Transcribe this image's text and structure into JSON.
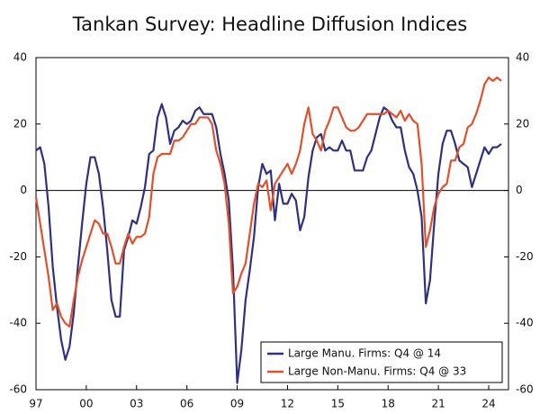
{
  "chart_data": {
    "type": "line",
    "title": "Tankan Survey: Headline Diffusion Indices",
    "categories": [
      "97",
      null,
      null,
      null,
      null,
      null,
      null,
      null,
      null,
      null,
      null,
      null,
      "00",
      null,
      null,
      null,
      null,
      null,
      null,
      null,
      null,
      null,
      null,
      null,
      "03",
      null,
      null,
      null,
      null,
      null,
      null,
      null,
      null,
      null,
      null,
      null,
      "06",
      null,
      null,
      null,
      null,
      null,
      null,
      null,
      null,
      null,
      null,
      null,
      "09",
      null,
      null,
      null,
      null,
      null,
      null,
      null,
      null,
      null,
      null,
      null,
      "12",
      null,
      null,
      null,
      null,
      null,
      null,
      null,
      null,
      null,
      null,
      null,
      "15",
      null,
      null,
      null,
      null,
      null,
      null,
      null,
      null,
      null,
      null,
      null,
      "18",
      null,
      null,
      null,
      null,
      null,
      null,
      null,
      null,
      null,
      null,
      null,
      "21",
      null,
      null,
      null,
      null,
      null,
      null,
      null,
      null,
      null,
      null,
      null,
      "24",
      null,
      null,
      null
    ],
    "series": [
      {
        "name": "Large Manu. Firms: Q4 @ 14",
        "color": "#2e3080",
        "values": [
          12,
          13,
          8,
          -5,
          -23,
          -35,
          -45,
          -51,
          -47,
          -37,
          -23,
          -10,
          2,
          10,
          10,
          5,
          -5,
          -18,
          -33,
          -38,
          -38,
          -18,
          -14,
          -9,
          -10,
          -5,
          1,
          11,
          12,
          22,
          26,
          22,
          14,
          18,
          19,
          21,
          20,
          21,
          24,
          25,
          23,
          23,
          23,
          19,
          11,
          5,
          -3,
          -24,
          -58,
          -48,
          -33,
          -24,
          -14,
          1,
          8,
          5,
          6,
          -9,
          2,
          -4,
          -4,
          -1,
          -3,
          -12,
          -8,
          4,
          12,
          16,
          17,
          12,
          13,
          12,
          12,
          15,
          12,
          12,
          6,
          6,
          6,
          10,
          12,
          17,
          22,
          25,
          24,
          21,
          19,
          19,
          12,
          7,
          5,
          0,
          -8,
          -34,
          -27,
          -10,
          5,
          14,
          18,
          18,
          14,
          9,
          8,
          7,
          1,
          5,
          9,
          13,
          11,
          13,
          13,
          14
        ]
      },
      {
        "name": "Large Non-Manu. Firms: Q4 @ 33",
        "color": "#e0502a",
        "values": [
          -2,
          -10,
          -18,
          -26,
          -36,
          -34,
          -38,
          -40,
          -41,
          -33,
          -26,
          -21,
          -17,
          -13,
          -9,
          -10,
          -13,
          -13,
          -17,
          -22,
          -22,
          -17,
          -13,
          -16,
          -14,
          -14,
          -13,
          -8,
          5,
          10,
          11,
          11,
          11,
          15,
          15,
          16,
          18,
          20,
          20,
          22,
          22,
          22,
          20,
          12,
          8,
          2,
          -10,
          -31,
          -29,
          -25,
          -22,
          -13,
          -4,
          2,
          1,
          3,
          -6,
          2,
          4,
          6,
          8,
          5,
          8,
          12,
          20,
          25,
          17,
          15,
          12,
          18,
          21,
          25,
          25,
          22,
          19,
          18,
          18,
          19,
          21,
          23,
          23,
          23,
          23,
          23,
          24,
          23,
          22,
          24,
          21,
          23,
          21,
          20,
          8,
          -17,
          -12,
          -5,
          -1,
          1,
          2,
          9,
          9,
          13,
          14,
          19,
          20,
          23,
          27,
          32,
          34,
          33,
          34,
          33
        ]
      }
    ],
    "ylim": [
      -60,
      40
    ],
    "yticks": [
      -60,
      -40,
      -20,
      0,
      20,
      40
    ],
    "y2lim": [
      -60,
      40
    ],
    "y2ticks": [
      -60,
      -40,
      -20,
      0,
      20,
      40
    ],
    "legend": "lower right"
  }
}
